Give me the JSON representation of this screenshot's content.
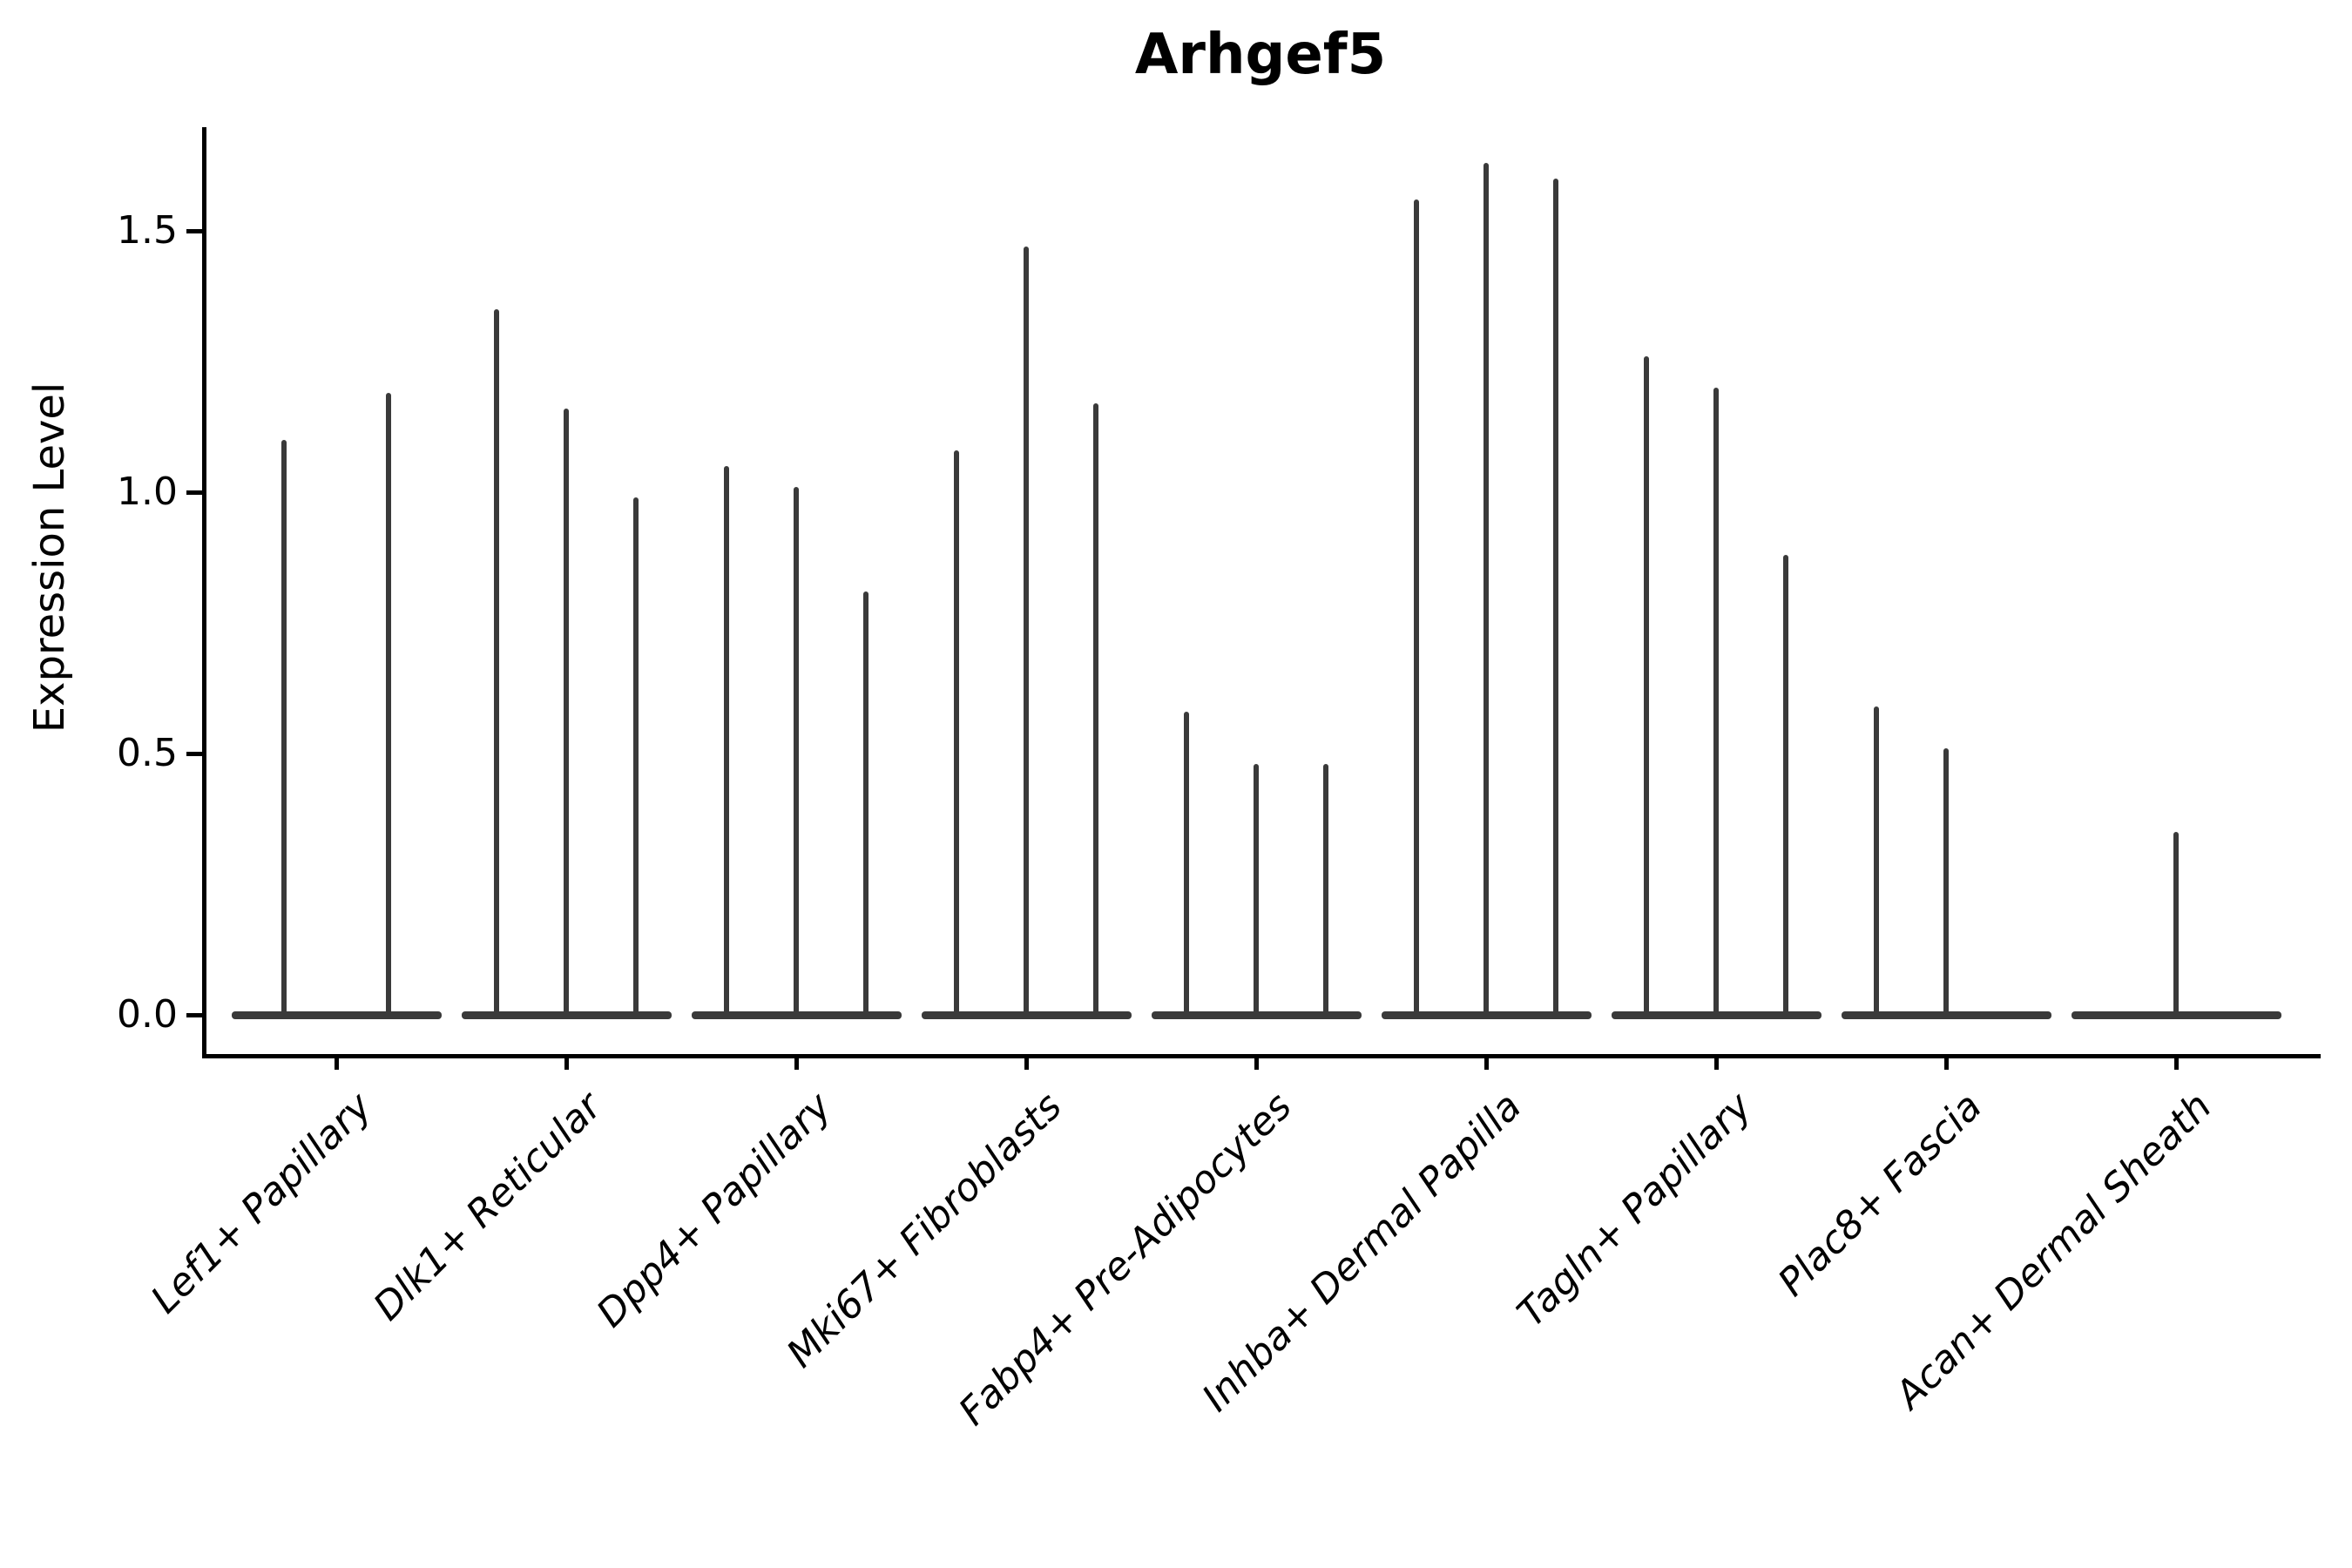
{
  "title": "Arhgef5",
  "axes": {
    "ylabel": "Expression Level",
    "xlabel": ""
  },
  "chart_data": {
    "type": "violin",
    "title": "Arhgef5",
    "ylabel": "Expression Level",
    "xlabel": "",
    "ylim": [
      -0.075,
      1.7
    ],
    "yticks": [
      "0.0",
      "0.5",
      "1.0",
      "1.5"
    ],
    "ytick_values": [
      0.0,
      0.5,
      1.0,
      1.5
    ],
    "grid": false,
    "legend": "none",
    "violin_color": "#3a3a3a",
    "axis_color": "#000000",
    "categories": [
      "Lef1+ Papillary",
      "Dlk1+ Reticular",
      "Dpp4+ Papillary",
      "Mki67+ Fibroblasts",
      "Fabp4+ Pre-Adipocytes",
      "Inhba+ Dermal Papilla",
      "Tagln+ Papillary",
      "Plac8+ Fascia",
      "Acan+ Dermal Sheath"
    ],
    "groups": [
      {
        "label": "Lef1+ Papillary",
        "spikes": [
          {
            "offset": -60,
            "max": 1.1
          },
          {
            "offset": 60,
            "max": 1.19
          }
        ]
      },
      {
        "label": "Dlk1+ Reticular",
        "spikes": [
          {
            "offset": -80,
            "max": 1.35
          },
          {
            "offset": 0,
            "max": 1.16
          },
          {
            "offset": 80,
            "max": 0.99
          }
        ]
      },
      {
        "label": "Dpp4+ Papillary",
        "spikes": [
          {
            "offset": -80,
            "max": 1.05
          },
          {
            "offset": 0,
            "max": 1.01
          },
          {
            "offset": 80,
            "max": 0.81
          }
        ]
      },
      {
        "label": "Mki67+ Fibroblasts",
        "spikes": [
          {
            "offset": -80,
            "max": 1.08
          },
          {
            "offset": 0,
            "max": 1.47
          },
          {
            "offset": 80,
            "max": 1.17
          }
        ]
      },
      {
        "label": "Fabp4+ Pre-Adipocytes",
        "spikes": [
          {
            "offset": -80,
            "max": 0.58
          },
          {
            "offset": 0,
            "max": 0.48
          },
          {
            "offset": 80,
            "max": 0.48
          }
        ]
      },
      {
        "label": "Inhba+ Dermal Papilla",
        "spikes": [
          {
            "offset": -80,
            "max": 1.56
          },
          {
            "offset": 0,
            "max": 1.63
          },
          {
            "offset": 80,
            "max": 1.6
          }
        ]
      },
      {
        "label": "Tagln+ Papillary",
        "spikes": [
          {
            "offset": -80,
            "max": 1.26
          },
          {
            "offset": 0,
            "max": 1.2
          },
          {
            "offset": 80,
            "max": 0.88
          }
        ]
      },
      {
        "label": "Plac8+ Fascia",
        "spikes": [
          {
            "offset": -80,
            "max": 0.59
          },
          {
            "offset": 0,
            "max": 0.51
          }
        ]
      },
      {
        "label": "Acan+ Dermal Sheath",
        "spikes": [
          {
            "offset": 0,
            "max": 0.35
          }
        ]
      }
    ]
  }
}
